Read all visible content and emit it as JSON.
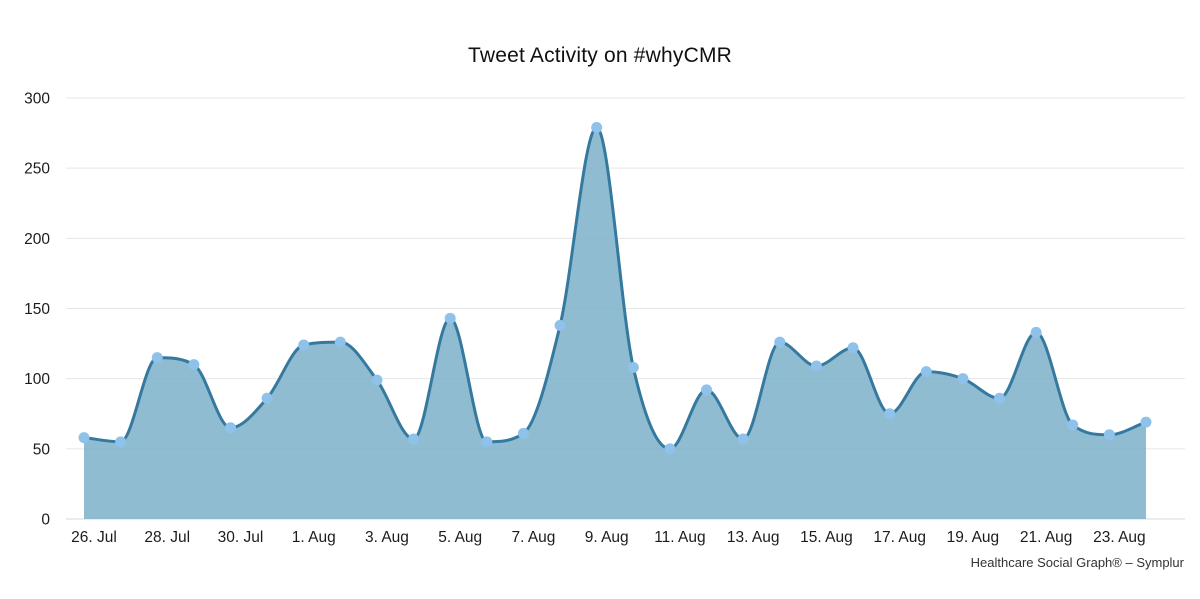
{
  "page": {
    "background": "#ffffff"
  },
  "chart_data": {
    "type": "area",
    "title": "Tweet Activity on #whyCMR",
    "attribution": "Healthcare Social Graph® – Symplur",
    "x": [
      "26. Jul",
      "27. Jul",
      "28. Jul",
      "29. Jul",
      "30. Jul",
      "31. Jul",
      "1. Aug",
      "2. Aug",
      "3. Aug",
      "4. Aug",
      "5. Aug",
      "6. Aug",
      "7. Aug",
      "8. Aug",
      "9. Aug",
      "10. Aug",
      "11. Aug",
      "12. Aug",
      "13. Aug",
      "14. Aug",
      "15. Aug",
      "16. Aug",
      "17. Aug",
      "18. Aug",
      "19. Aug",
      "20. Aug",
      "21. Aug",
      "22. Aug",
      "23. Aug",
      "24. Aug"
    ],
    "values": [
      58,
      55,
      115,
      110,
      65,
      86,
      124,
      126,
      99,
      57,
      143,
      55,
      61,
      138,
      279,
      108,
      50,
      92,
      57,
      126,
      109,
      122,
      75,
      105,
      100,
      86,
      133,
      67,
      60,
      69
    ],
    "visible_xtick_labels": [
      "26. Jul",
      "28. Jul",
      "30. Jul",
      "1. Aug",
      "3. Aug",
      "5. Aug",
      "7. Aug",
      "9. Aug",
      "11. Aug",
      "13. Aug",
      "15. Aug",
      "17. Aug",
      "19. Aug",
      "21. Aug",
      "23. Aug"
    ],
    "xtick_every": 2,
    "ylim": [
      0,
      300
    ],
    "yticks": [
      0,
      50,
      100,
      150,
      200,
      250,
      300
    ],
    "grid": true,
    "legend": "none",
    "colors": {
      "line": "#35799f",
      "fill": "#7db0c9",
      "fill_opacity": 0.85,
      "marker": "#8ec2ea",
      "grid": "#e6e6e6",
      "baseline": "#d9d9d9",
      "tick_text": "#1c1c1c"
    }
  }
}
